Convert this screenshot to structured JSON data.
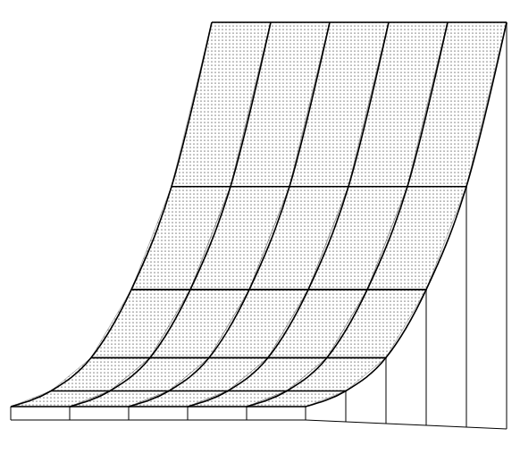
{
  "chart_data": {
    "type": "surface",
    "x": [
      0,
      1,
      2,
      3,
      4,
      5
    ],
    "y": [
      0,
      1,
      2,
      3,
      4,
      5
    ],
    "z": [
      [
        0,
        0,
        0,
        0,
        0,
        0
      ],
      [
        2,
        2,
        2,
        2,
        2,
        2
      ],
      [
        6,
        6,
        6,
        6,
        6,
        6
      ],
      [
        14,
        14,
        14,
        14,
        14,
        14
      ],
      [
        26,
        26,
        26,
        26,
        26,
        26
      ],
      [
        45,
        45,
        45,
        45,
        45,
        45
      ]
    ],
    "xlim": [
      0,
      5
    ],
    "ylim": [
      0,
      5
    ],
    "zlim": [
      0,
      45
    ],
    "tick_labels": false,
    "grid": true,
    "color": "#000000"
  }
}
